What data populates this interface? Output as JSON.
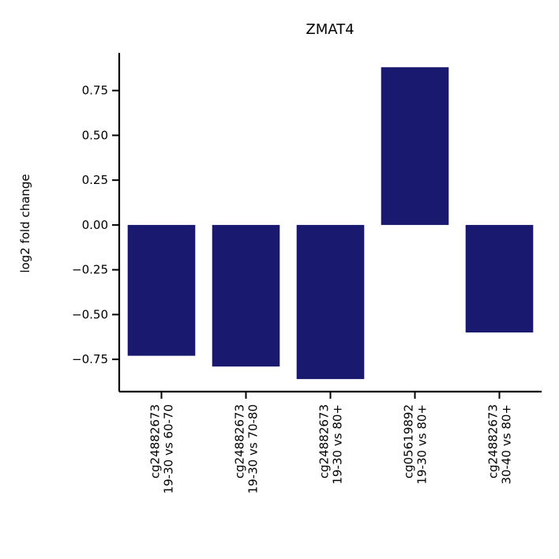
{
  "chart_data": {
    "type": "bar",
    "title": "ZMAT4",
    "xlabel": "",
    "ylabel": "log2 fold change",
    "categories": [
      [
        "cg24882673",
        "19-30 vs 60-70"
      ],
      [
        "cg24882673",
        "19-30 vs 70-80"
      ],
      [
        "cg24882673",
        "19-30 vs 80+"
      ],
      [
        "cg05619892",
        "19-30 vs 80+"
      ],
      [
        "cg24882673",
        "30-40 vs 80+"
      ]
    ],
    "values": [
      -0.73,
      -0.79,
      -0.86,
      0.88,
      -0.6
    ],
    "ylim": [
      -0.93,
      0.96
    ],
    "yticks": [
      0.75,
      0.5,
      0.25,
      0.0,
      -0.25,
      -0.5,
      -0.75
    ],
    "ytick_labels": [
      "0.75",
      "0.50",
      "0.25",
      "0.00",
      "−0.25",
      "−0.50",
      "−0.75"
    ],
    "bar_color": "#191970",
    "grid": false
  }
}
